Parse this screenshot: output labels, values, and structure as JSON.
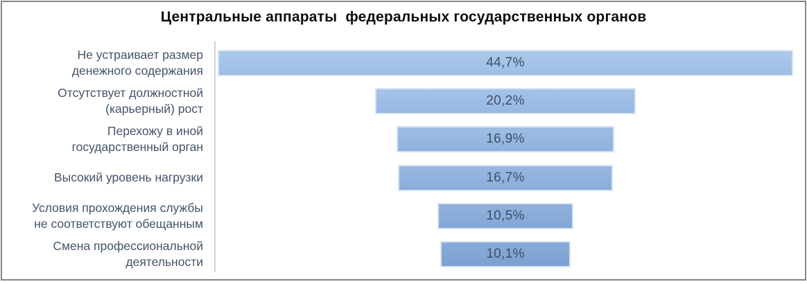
{
  "frame": {
    "border_color": "#858585",
    "background": "#ffffff"
  },
  "title": "Центральные аппараты  федеральных государственных органов",
  "chart_data": {
    "type": "bar",
    "subtype": "centered-funnel",
    "orientation": "horizontal",
    "title": "Центральные аппараты  федеральных государственных органов",
    "xlabel": "",
    "ylabel": "",
    "xmax": 45,
    "value_suffix": "%",
    "decimal_separator": ",",
    "grid": false,
    "legend": false,
    "axis_line_color": "#cfd3da",
    "text_color": "#44546A",
    "categories": [
      "Не устраивает размер денежного содержания",
      "Отсутствует должностной (карьерный) рост",
      "Перехожу в иной государственный орган",
      "Высокий уровень нагрузки",
      "Условия прохождения службы не соответствуют обещанным",
      "Смена профессиональной деятельности"
    ],
    "values": [
      44.7,
      20.2,
      16.9,
      16.7,
      10.5,
      10.1
    ],
    "rows": [
      {
        "label_lines": [
          "Не устраивает размер",
          "денежного содержания"
        ],
        "value": 44.7,
        "value_label": "44,7%",
        "color": "#9DBEE5",
        "color_top": "#ADC8EB"
      },
      {
        "label_lines": [
          "Отсутствует должностной",
          "(карьерный) рост"
        ],
        "value": 20.2,
        "value_label": "20,2%",
        "color": "#97B8E2",
        "color_top": "#A6C2E8"
      },
      {
        "label_lines": [
          "Перехожу в иной",
          "государственный орган"
        ],
        "value": 16.9,
        "value_label": "16,9%",
        "color": "#90B2DE",
        "color_top": "#9FBDE4"
      },
      {
        "label_lines": [
          "Высокий уровень нагрузки"
        ],
        "value": 16.7,
        "value_label": "16,7%",
        "color": "#8AADDA",
        "color_top": "#98B7E0"
      },
      {
        "label_lines": [
          "Условия прохождения службы",
          "не соответствуют обещанным"
        ],
        "value": 10.5,
        "value_label": "10,5%",
        "color": "#84A7D6",
        "color_top": "#91B1DC"
      },
      {
        "label_lines": [
          "Смена профессиональной",
          "деятельности"
        ],
        "value": 10.1,
        "value_label": "10,1%",
        "color": "#7CA0D1",
        "color_top": "#89ABD8"
      }
    ]
  }
}
